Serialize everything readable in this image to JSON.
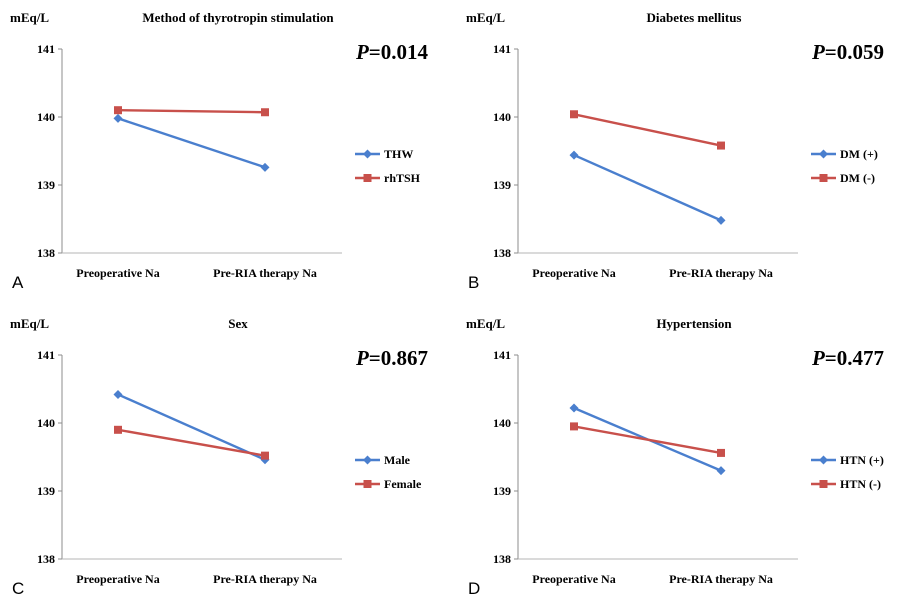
{
  "chart_data": [
    {
      "type": "line",
      "panel_label": "A",
      "title": "Method of thyrotropin stimulation",
      "ylabel": "mEq/L",
      "p_prefix": "P",
      "p_value": "=0.014",
      "categories": [
        "Preoperative Na",
        "Pre-RIA therapy Na"
      ],
      "yticks": [
        "138",
        "139",
        "140",
        "141"
      ],
      "ylim": [
        138,
        141
      ],
      "grid": false,
      "legend_position": "right",
      "series": [
        {
          "name": "THW",
          "values": [
            139.98,
            139.26
          ],
          "color": "#4a7fce",
          "marker": "diamond"
        },
        {
          "name": "rhTSH",
          "values": [
            140.1,
            140.07
          ],
          "color": "#c8504b",
          "marker": "square"
        }
      ]
    },
    {
      "type": "line",
      "panel_label": "B",
      "title": "Diabetes mellitus",
      "ylabel": "mEq/L",
      "p_prefix": "P",
      "p_value": "=0.059",
      "categories": [
        "Preoperative Na",
        "Pre-RIA therapy Na"
      ],
      "yticks": [
        "138",
        "139",
        "140",
        "141"
      ],
      "ylim": [
        138,
        141
      ],
      "grid": false,
      "legend_position": "right",
      "series": [
        {
          "name": "DM (+)",
          "values": [
            139.44,
            138.48
          ],
          "color": "#4a7fce",
          "marker": "diamond"
        },
        {
          "name": "DM (-)",
          "values": [
            140.04,
            139.58
          ],
          "color": "#c8504b",
          "marker": "square"
        }
      ]
    },
    {
      "type": "line",
      "panel_label": "C",
      "title": "Sex",
      "ylabel": "mEq/L",
      "p_prefix": "P",
      "p_value": "=0.867",
      "categories": [
        "Preoperative Na",
        "Pre-RIA therapy Na"
      ],
      "yticks": [
        "138",
        "139",
        "140",
        "141"
      ],
      "ylim": [
        138,
        141
      ],
      "grid": false,
      "legend_position": "right",
      "series": [
        {
          "name": "Male",
          "values": [
            140.42,
            139.46
          ],
          "color": "#4a7fce",
          "marker": "diamond"
        },
        {
          "name": "Female",
          "values": [
            139.9,
            139.52
          ],
          "color": "#c8504b",
          "marker": "square"
        }
      ]
    },
    {
      "type": "line",
      "panel_label": "D",
      "title": "Hypertension",
      "ylabel": "mEq/L",
      "p_prefix": "P",
      "p_value": "=0.477",
      "categories": [
        "Preoperative Na",
        "Pre-RIA therapy Na"
      ],
      "yticks": [
        "138",
        "139",
        "140",
        "141"
      ],
      "ylim": [
        138,
        141
      ],
      "grid": false,
      "legend_position": "right",
      "series": [
        {
          "name": "HTN (+)",
          "values": [
            140.22,
            139.3
          ],
          "color": "#4a7fce",
          "marker": "diamond"
        },
        {
          "name": "HTN (-)",
          "values": [
            139.95,
            139.56
          ],
          "color": "#c8504b",
          "marker": "square"
        }
      ]
    }
  ]
}
